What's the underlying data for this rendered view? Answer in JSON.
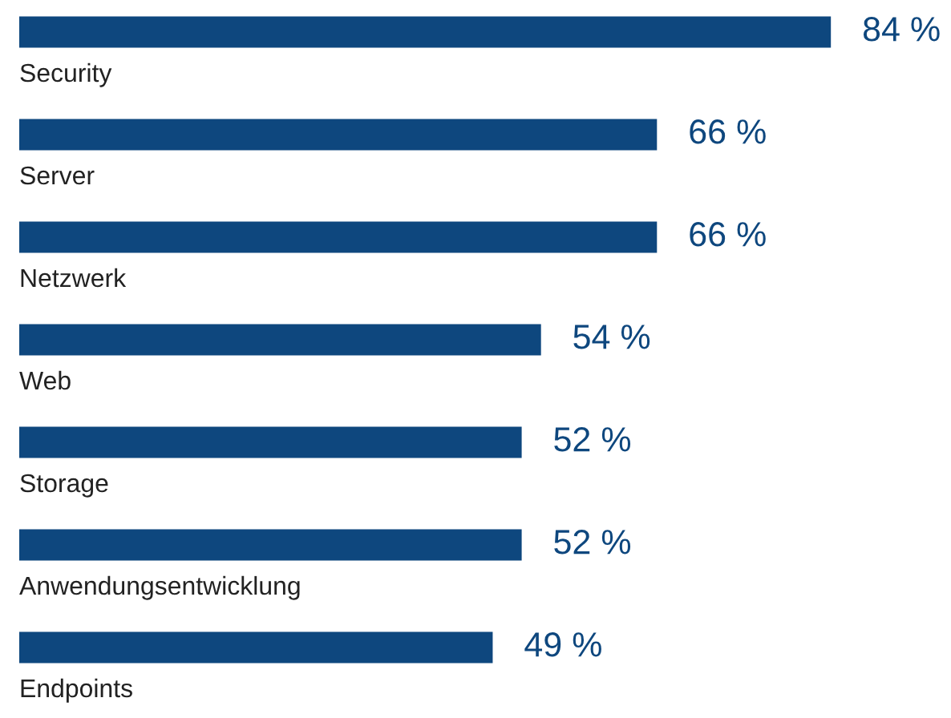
{
  "chart_data": {
    "type": "bar",
    "orientation": "horizontal",
    "categories": [
      "Security",
      "Server",
      "Netzwerk",
      "Web",
      "Storage",
      "Anwendungsentwicklung",
      "Endpoints"
    ],
    "values": [
      84,
      66,
      66,
      54,
      52,
      52,
      49
    ],
    "value_labels": [
      "84 %",
      "66 %",
      "66 %",
      "54 %",
      "52 %",
      "52 %",
      "49 %"
    ],
    "color": "#0e477e"
  }
}
